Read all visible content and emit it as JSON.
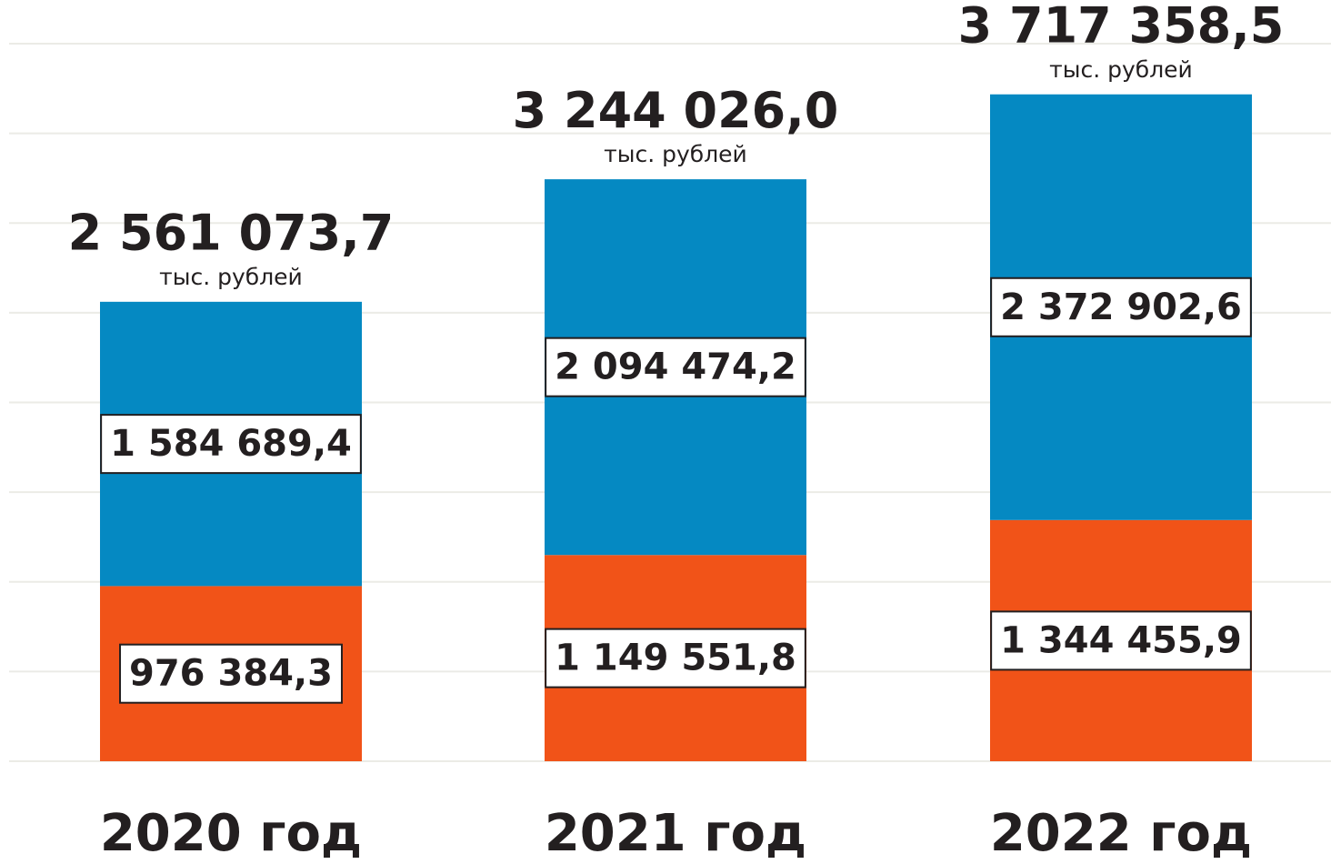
{
  "chart_data": {
    "type": "stacked_bar",
    "categories": [
      "2020 год",
      "2021 год",
      "2022 год"
    ],
    "series": [
      {
        "color": "#f15318",
        "values": [
          976384.3,
          1149551.8,
          1344455.9
        ],
        "value_labels": [
          "976 384,3",
          "1 149 551,8",
          "1 344 455,9"
        ]
      },
      {
        "color": "#0589c2",
        "values": [
          1584689.4,
          2094474.2,
          2372902.6
        ],
        "value_labels": [
          "1 584 689,4",
          "2 094 474,2",
          "2 372 902,6"
        ]
      }
    ],
    "totals": [
      2561073.7,
      3244026.0,
      3717358.5
    ],
    "total_labels": [
      "2 561 073,7",
      "3 244 026,0",
      "3 717 358,5"
    ],
    "total_unit": "тыс. рублей",
    "ylim": [
      0,
      4000000
    ],
    "yticks": [
      0,
      500000,
      1000000,
      1500000,
      2000000,
      2500000,
      3000000,
      3500000,
      4000000
    ],
    "grid": true
  }
}
